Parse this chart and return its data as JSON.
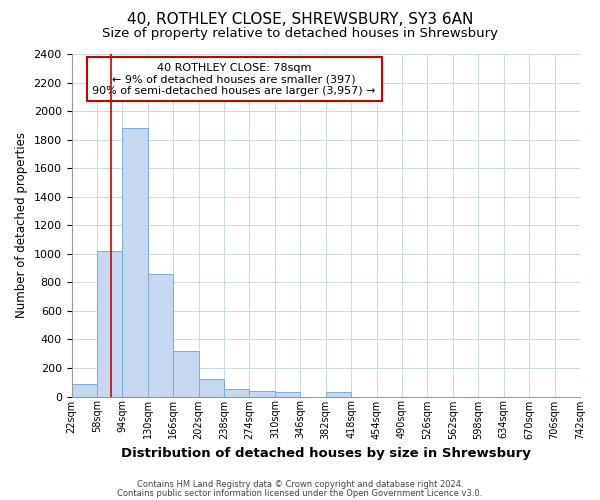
{
  "title_line1": "40, ROTHLEY CLOSE, SHREWSBURY, SY3 6AN",
  "title_line2": "Size of property relative to detached houses in Shrewsbury",
  "xlabel": "Distribution of detached houses by size in Shrewsbury",
  "ylabel": "Number of detached properties",
  "bin_edges": [
    22,
    58,
    94,
    130,
    166,
    202,
    238,
    274,
    310,
    346,
    382,
    418,
    454,
    490,
    526,
    562,
    598,
    634,
    670,
    706,
    742
  ],
  "bar_heights": [
    90,
    1020,
    1880,
    860,
    320,
    120,
    50,
    40,
    30,
    0,
    30,
    0,
    0,
    0,
    0,
    0,
    0,
    0,
    0,
    0
  ],
  "bar_color": "#c5d8ef",
  "bar_edge_color": "#7aadd4",
  "property_x": 78,
  "red_line_color": "#cc0000",
  "ylim": [
    0,
    2400
  ],
  "xlim": [
    22,
    742
  ],
  "annotation_text": "40 ROTHLEY CLOSE: 78sqm\n← 9% of detached houses are smaller (397)\n90% of semi-detached houses are larger (3,957) →",
  "annotation_box_color": "#ffffff",
  "annotation_box_edge": "#cc0000",
  "footer_line1": "Contains HM Land Registry data © Crown copyright and database right 2024.",
  "footer_line2": "Contains public sector information licensed under the Open Government Licence v3.0.",
  "bg_color": "#ffffff",
  "grid_color": "#c8d8e8",
  "title_fontsize": 11,
  "subtitle_fontsize": 9.5,
  "ylabel_fontsize": 8.5,
  "xlabel_fontsize": 9.5,
  "tick_fontsize": 7,
  "annot_fontsize": 8,
  "footer_fontsize": 6,
  "tick_labels": [
    "22sqm",
    "58sqm",
    "94sqm",
    "130sqm",
    "166sqm",
    "202sqm",
    "238sqm",
    "274sqm",
    "310sqm",
    "346sqm",
    "382sqm",
    "418sqm",
    "454sqm",
    "490sqm",
    "526sqm",
    "562sqm",
    "598sqm",
    "634sqm",
    "670sqm",
    "706sqm",
    "742sqm"
  ],
  "ytick_values": [
    0,
    200,
    400,
    600,
    800,
    1000,
    1200,
    1400,
    1600,
    1800,
    2000,
    2200,
    2400
  ]
}
